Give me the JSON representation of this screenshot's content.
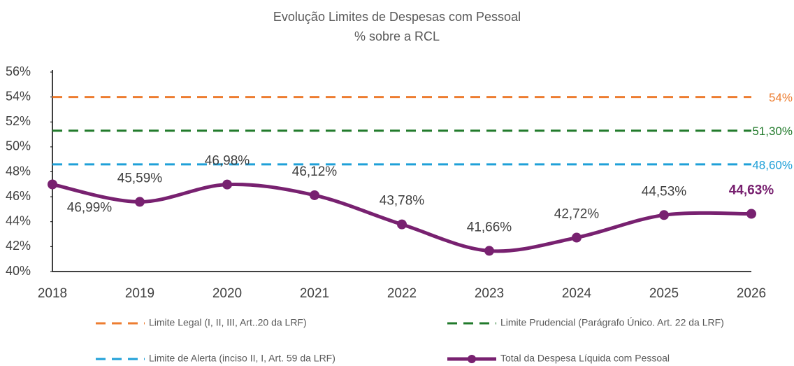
{
  "chart_data": {
    "type": "line",
    "title": "Evolução Limites de Despesas com Pessoal",
    "subtitle": "% sobre a RCL",
    "categories": [
      "2018",
      "2019",
      "2020",
      "2021",
      "2022",
      "2023",
      "2024",
      "2025",
      "2026"
    ],
    "ylim": [
      40,
      56
    ],
    "yticks": [
      {
        "value": 40,
        "label": "40%"
      },
      {
        "value": 42,
        "label": "42%"
      },
      {
        "value": 44,
        "label": "44%"
      },
      {
        "value": 46,
        "label": "46%"
      },
      {
        "value": 48,
        "label": "48%"
      },
      {
        "value": 50,
        "label": "50%"
      },
      {
        "value": 52,
        "label": "52%"
      },
      {
        "value": 54,
        "label": "54%"
      },
      {
        "value": 56,
        "label": "56%"
      }
    ],
    "grid": false,
    "series": [
      {
        "name": "Limite Legal (I, II, III, Art..20 da LRF)",
        "color": "#ed7d31",
        "style": "dashed",
        "values": [
          54,
          54,
          54,
          54,
          54,
          54,
          54,
          54,
          54
        ],
        "value_labels": [
          null,
          null,
          null,
          null,
          null,
          null,
          null,
          null,
          "54%"
        ]
      },
      {
        "name": "Limite Prudencial (Parágrafo Único. Art. 22 da LRF)",
        "color": "#217a2b",
        "style": "dashed",
        "values": [
          51.3,
          51.3,
          51.3,
          51.3,
          51.3,
          51.3,
          51.3,
          51.3,
          51.3
        ],
        "value_labels": [
          null,
          null,
          null,
          null,
          null,
          null,
          null,
          null,
          "51,30%"
        ]
      },
      {
        "name": "Limite de Alerta (inciso II, I, Art. 59 da LRF)",
        "color": "#1fa0d8",
        "style": "dashed",
        "values": [
          48.6,
          48.6,
          48.6,
          48.6,
          48.6,
          48.6,
          48.6,
          48.6,
          48.6
        ],
        "value_labels": [
          null,
          null,
          null,
          null,
          null,
          null,
          null,
          null,
          "48,60%"
        ]
      },
      {
        "name": "Total da Despesa Líquida com Pessoal",
        "color": "#782170",
        "style": "solid",
        "values": [
          46.99,
          45.59,
          46.98,
          46.12,
          43.78,
          41.66,
          42.72,
          44.53,
          44.63
        ],
        "value_labels": [
          "46,99%",
          "45,59%",
          "46,98%",
          "46,12%",
          "43,78%",
          "41,66%",
          "42,72%",
          "44,53%",
          "44,63%"
        ]
      }
    ]
  }
}
